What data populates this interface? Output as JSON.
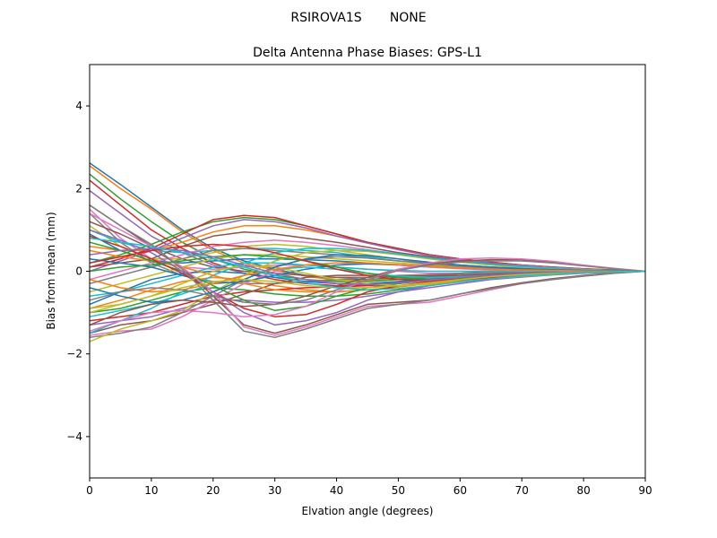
{
  "suptitle": {
    "station": "RSIROVA1S",
    "radome": "NONE"
  },
  "chart_data": {
    "type": "line",
    "title": "Delta Antenna Phase Biases: GPS-L1",
    "xlabel": "Elvation angle (degrees)",
    "ylabel": "Bias from mean (mm)",
    "xlim": [
      0,
      90
    ],
    "ylim": [
      -5,
      5
    ],
    "xticks": [
      0,
      10,
      20,
      30,
      40,
      50,
      60,
      70,
      80,
      90
    ],
    "yticks": [
      -4,
      -2,
      0,
      2,
      4
    ],
    "ytick_labels": [
      "−4",
      "−2",
      "0",
      "2",
      "4"
    ],
    "grid": false,
    "legend": "none",
    "x": [
      0,
      5,
      10,
      15,
      20,
      25,
      30,
      35,
      40,
      45,
      50,
      55,
      60,
      65,
      70,
      75,
      80,
      85,
      90
    ],
    "palette": [
      "#1f77b4",
      "#ff7f0e",
      "#2ca02c",
      "#d62728",
      "#9467bd",
      "#8c564b",
      "#e377c2",
      "#7f7f7f",
      "#bcbd22",
      "#17becf"
    ],
    "series": [
      {
        "values": [
          2.62,
          2.1,
          1.55,
          1.0,
          0.55,
          0.25,
          0.05,
          -0.1,
          -0.2,
          -0.2,
          -0.15,
          -0.1,
          -0.05,
          0.0,
          0.02,
          0.02,
          0.02,
          0.01,
          0.0
        ]
      },
      {
        "values": [
          2.55,
          2.0,
          1.5,
          0.95,
          0.5,
          0.2,
          0.02,
          -0.12,
          -0.22,
          -0.22,
          -0.18,
          -0.12,
          -0.06,
          -0.02,
          0.0,
          0.01,
          0.01,
          0.0,
          0.0
        ]
      },
      {
        "values": [
          2.35,
          1.75,
          1.2,
          0.7,
          0.3,
          0.05,
          -0.1,
          -0.2,
          -0.25,
          -0.25,
          -0.2,
          -0.15,
          -0.1,
          -0.05,
          -0.02,
          0.0,
          0.0,
          0.0,
          0.0
        ]
      },
      {
        "values": [
          2.2,
          1.6,
          1.0,
          0.55,
          0.2,
          -0.05,
          -0.2,
          -0.3,
          -0.35,
          -0.33,
          -0.28,
          -0.2,
          -0.12,
          -0.06,
          -0.02,
          0.0,
          0.0,
          0.0,
          0.0
        ]
      },
      {
        "values": [
          1.95,
          1.4,
          0.85,
          0.45,
          0.15,
          -0.05,
          -0.15,
          -0.25,
          -0.3,
          -0.3,
          -0.25,
          -0.18,
          -0.1,
          -0.05,
          -0.02,
          0.0,
          0.0,
          0.0,
          0.0
        ]
      },
      {
        "values": [
          1.6,
          1.1,
          0.6,
          0.3,
          0.1,
          0.0,
          -0.05,
          -0.1,
          -0.15,
          -0.15,
          -0.12,
          -0.1,
          -0.06,
          -0.03,
          -0.01,
          0.0,
          0.0,
          0.0,
          0.0
        ]
      },
      {
        "values": [
          1.5,
          0.8,
          0.3,
          0.1,
          0.05,
          0.1,
          0.15,
          0.15,
          0.1,
          0.05,
          0.0,
          -0.05,
          -0.05,
          -0.04,
          -0.02,
          -0.01,
          0.0,
          0.0,
          0.0
        ]
      },
      {
        "values": [
          1.4,
          0.7,
          0.2,
          -0.1,
          -0.25,
          -0.3,
          -0.3,
          -0.25,
          -0.2,
          -0.15,
          -0.1,
          -0.08,
          -0.05,
          -0.03,
          -0.02,
          -0.01,
          0.0,
          0.0,
          0.0
        ]
      },
      {
        "values": [
          1.1,
          0.6,
          0.3,
          0.3,
          0.45,
          0.6,
          0.65,
          0.6,
          0.5,
          0.4,
          0.3,
          0.2,
          0.15,
          0.1,
          0.08,
          0.05,
          0.03,
          0.01,
          0.0
        ]
      },
      {
        "values": [
          1.0,
          0.7,
          0.5,
          0.45,
          0.5,
          0.55,
          0.55,
          0.5,
          0.45,
          0.35,
          0.25,
          0.2,
          0.15,
          0.1,
          0.06,
          0.04,
          0.02,
          0.01,
          0.0
        ]
      },
      {
        "values": [
          0.9,
          0.5,
          0.25,
          0.2,
          0.25,
          0.3,
          0.3,
          0.28,
          0.25,
          0.2,
          0.15,
          0.1,
          0.08,
          0.05,
          0.03,
          0.02,
          0.01,
          0.0,
          0.0
        ]
      },
      {
        "values": [
          0.6,
          0.5,
          0.5,
          0.7,
          0.95,
          1.1,
          1.1,
          1.0,
          0.85,
          0.7,
          0.55,
          0.4,
          0.3,
          0.22,
          0.15,
          0.1,
          0.06,
          0.03,
          0.0
        ]
      },
      {
        "values": [
          0.2,
          0.4,
          0.65,
          0.95,
          1.2,
          1.3,
          1.25,
          1.1,
          0.9,
          0.7,
          0.55,
          0.4,
          0.3,
          0.22,
          0.15,
          0.1,
          0.06,
          0.03,
          0.0
        ]
      },
      {
        "values": [
          0.1,
          0.3,
          0.55,
          0.9,
          1.25,
          1.35,
          1.3,
          1.1,
          0.9,
          0.7,
          0.55,
          0.4,
          0.3,
          0.22,
          0.15,
          0.1,
          0.06,
          0.03,
          0.0
        ]
      },
      {
        "values": [
          0.0,
          0.25,
          0.5,
          0.8,
          1.1,
          1.25,
          1.2,
          1.05,
          0.85,
          0.68,
          0.52,
          0.38,
          0.28,
          0.2,
          0.14,
          0.09,
          0.05,
          0.02,
          0.0
        ]
      },
      {
        "values": [
          0.1,
          0.2,
          0.3,
          0.6,
          0.85,
          0.95,
          0.9,
          0.8,
          0.7,
          0.58,
          0.45,
          0.35,
          0.25,
          0.18,
          0.12,
          0.08,
          0.05,
          0.02,
          0.0
        ]
      },
      {
        "values": [
          -0.2,
          0.0,
          0.2,
          0.4,
          0.6,
          0.7,
          0.75,
          0.7,
          0.62,
          0.52,
          0.42,
          0.32,
          0.24,
          0.17,
          0.12,
          0.08,
          0.05,
          0.02,
          0.0
        ]
      },
      {
        "values": [
          -0.3,
          -0.1,
          0.1,
          0.3,
          0.5,
          0.55,
          0.5,
          0.45,
          0.4,
          0.32,
          0.25,
          0.2,
          0.15,
          0.1,
          0.07,
          0.05,
          0.03,
          0.01,
          0.0
        ]
      },
      {
        "values": [
          -0.5,
          -0.3,
          -0.1,
          0.1,
          0.3,
          0.4,
          0.4,
          0.35,
          0.3,
          0.25,
          0.2,
          0.15,
          0.1,
          0.07,
          0.05,
          0.03,
          0.02,
          0.01,
          0.0
        ]
      },
      {
        "values": [
          -0.6,
          -0.5,
          -0.3,
          -0.1,
          0.1,
          0.2,
          0.2,
          0.15,
          0.1,
          0.05,
          0.02,
          0.0,
          0.0,
          0.0,
          0.0,
          0.0,
          0.0,
          0.0,
          0.0
        ]
      },
      {
        "values": [
          -0.8,
          -0.5,
          -0.2,
          -0.05,
          0.0,
          -0.05,
          -0.15,
          -0.25,
          -0.3,
          -0.3,
          -0.25,
          -0.2,
          -0.15,
          -0.1,
          -0.06,
          -0.04,
          -0.02,
          -0.01,
          0.0
        ]
      },
      {
        "values": [
          -0.9,
          -0.7,
          -0.45,
          -0.25,
          -0.15,
          -0.2,
          -0.35,
          -0.45,
          -0.5,
          -0.45,
          -0.38,
          -0.3,
          -0.22,
          -0.15,
          -0.1,
          -0.06,
          -0.03,
          -0.01,
          0.0
        ]
      },
      {
        "values": [
          -1.0,
          -0.9,
          -0.7,
          -0.5,
          -0.4,
          -0.45,
          -0.55,
          -0.6,
          -0.6,
          -0.55,
          -0.45,
          -0.35,
          -0.25,
          -0.18,
          -0.12,
          -0.08,
          -0.04,
          -0.02,
          0.0
        ]
      },
      {
        "values": [
          -1.2,
          -1.1,
          -1.0,
          -0.8,
          -0.6,
          -0.5,
          -0.45,
          -0.4,
          -0.38,
          -0.35,
          -0.3,
          -0.22,
          -0.15,
          -0.1,
          -0.06,
          -0.04,
          -0.02,
          -0.01,
          0.0
        ]
      },
      {
        "values": [
          -1.3,
          -1.2,
          -1.1,
          -0.9,
          -0.7,
          -0.7,
          -0.75,
          -0.75,
          -0.7,
          -0.6,
          -0.5,
          -0.4,
          -0.3,
          -0.2,
          -0.14,
          -0.09,
          -0.05,
          -0.02,
          0.0
        ]
      },
      {
        "values": [
          -1.5,
          -1.3,
          -1.2,
          -1.0,
          -0.8,
          -0.55,
          -0.3,
          -0.15,
          -0.1,
          -0.1,
          -0.12,
          -0.12,
          -0.1,
          -0.07,
          -0.05,
          -0.03,
          -0.02,
          -0.01,
          0.0
        ]
      },
      {
        "values": [
          -1.55,
          -1.45,
          -1.4,
          -1.1,
          -0.7,
          -0.3,
          0.0,
          0.15,
          0.2,
          0.18,
          0.15,
          0.1,
          0.06,
          0.03,
          0.02,
          0.01,
          0.0,
          0.0,
          0.0
        ]
      },
      {
        "values": [
          -1.6,
          -1.5,
          -1.35,
          -1.0,
          -0.6,
          -0.2,
          0.1,
          0.3,
          0.35,
          0.32,
          0.25,
          0.18,
          0.12,
          0.08,
          0.05,
          0.03,
          0.02,
          0.01,
          0.0
        ]
      },
      {
        "values": [
          -1.7,
          -1.4,
          -1.2,
          -0.95,
          -0.5,
          -0.1,
          0.25,
          0.45,
          0.5,
          0.48,
          0.4,
          0.3,
          0.22,
          0.15,
          0.1,
          0.06,
          0.03,
          0.01,
          0.0
        ]
      },
      {
        "values": [
          -1.5,
          -1.2,
          -0.9,
          -0.5,
          -0.1,
          0.2,
          0.45,
          0.55,
          0.55,
          0.5,
          0.42,
          0.32,
          0.24,
          0.17,
          0.11,
          0.07,
          0.04,
          0.02,
          0.0
        ]
      },
      {
        "values": [
          0.3,
          0.2,
          0.1,
          -0.1,
          -0.3,
          -0.25,
          -0.1,
          0.05,
          0.15,
          0.18,
          0.16,
          0.12,
          0.08,
          0.05,
          0.03,
          0.02,
          0.01,
          0.0,
          0.0
        ]
      },
      {
        "values": [
          0.5,
          0.35,
          0.25,
          0.1,
          -0.1,
          -0.3,
          -0.45,
          -0.5,
          -0.5,
          -0.45,
          -0.38,
          -0.3,
          -0.22,
          -0.15,
          -0.1,
          -0.06,
          -0.03,
          -0.01,
          0.0
        ]
      },
      {
        "values": [
          0.7,
          0.5,
          0.25,
          0.0,
          -0.35,
          -0.7,
          -0.95,
          -0.85,
          -0.6,
          -0.4,
          -0.3,
          -0.22,
          -0.15,
          -0.1,
          -0.06,
          -0.04,
          -0.02,
          -0.01,
          0.0
        ]
      },
      {
        "values": [
          0.85,
          0.6,
          0.3,
          -0.05,
          -0.5,
          -0.9,
          -1.1,
          -1.05,
          -0.8,
          -0.5,
          -0.35,
          -0.25,
          -0.18,
          -0.12,
          -0.08,
          -0.05,
          -0.03,
          -0.01,
          0.0
        ]
      },
      {
        "values": [
          1.0,
          0.75,
          0.45,
          0.0,
          -0.5,
          -1.0,
          -1.3,
          -1.2,
          -1.0,
          -0.7,
          -0.5,
          -0.35,
          -0.24,
          -0.16,
          -0.1,
          -0.06,
          -0.03,
          -0.01,
          0.0
        ]
      },
      {
        "values": [
          1.2,
          0.9,
          0.55,
          0.1,
          -0.6,
          -1.3,
          -1.5,
          -1.3,
          -1.05,
          -0.8,
          -0.75,
          -0.7,
          -0.55,
          -0.4,
          -0.28,
          -0.18,
          -0.1,
          -0.04,
          0.0
        ]
      },
      {
        "values": [
          1.4,
          1.0,
          0.6,
          0.1,
          -0.5,
          -1.35,
          -1.55,
          -1.35,
          -1.1,
          -0.85,
          -0.8,
          -0.75,
          -0.6,
          -0.45,
          -0.3,
          -0.2,
          -0.12,
          -0.05,
          0.0
        ]
      },
      {
        "values": [
          1.6,
          1.1,
          0.65,
          0.05,
          -0.7,
          -1.45,
          -1.6,
          -1.4,
          -1.15,
          -0.9,
          -0.8,
          -0.7,
          -0.55,
          -0.42,
          -0.3,
          -0.2,
          -0.12,
          -0.05,
          0.0
        ]
      },
      {
        "values": [
          -0.9,
          -0.8,
          -0.6,
          -0.3,
          0.0,
          0.15,
          0.1,
          -0.05,
          -0.2,
          -0.3,
          -0.35,
          -0.32,
          -0.25,
          -0.18,
          -0.12,
          -0.08,
          -0.04,
          -0.02,
          0.0
        ]
      },
      {
        "values": [
          -1.1,
          -0.95,
          -0.8,
          -0.55,
          -0.3,
          -0.1,
          0.05,
          0.1,
          0.05,
          -0.05,
          -0.12,
          -0.15,
          -0.13,
          -0.1,
          -0.07,
          -0.04,
          -0.02,
          -0.01,
          0.0
        ]
      },
      {
        "values": [
          -0.4,
          -0.6,
          -0.75,
          -0.7,
          -0.5,
          -0.2,
          0.1,
          0.3,
          0.4,
          0.38,
          0.3,
          0.22,
          0.15,
          0.1,
          0.06,
          0.04,
          0.02,
          0.01,
          0.0
        ]
      },
      {
        "values": [
          -0.2,
          -0.4,
          -0.5,
          -0.45,
          -0.3,
          -0.1,
          0.05,
          0.15,
          0.2,
          0.2,
          0.16,
          0.12,
          0.08,
          0.05,
          0.03,
          0.02,
          0.01,
          0.0,
          0.0
        ]
      },
      {
        "values": [
          0.0,
          0.1,
          0.15,
          0.25,
          0.35,
          0.4,
          0.35,
          0.25,
          0.1,
          -0.05,
          -0.15,
          -0.2,
          -0.18,
          -0.14,
          -0.1,
          -0.06,
          -0.03,
          -0.01,
          0.0
        ]
      },
      {
        "values": [
          0.2,
          0.35,
          0.5,
          0.6,
          0.65,
          0.6,
          0.45,
          0.25,
          0.05,
          -0.1,
          -0.2,
          -0.22,
          -0.2,
          -0.15,
          -0.1,
          -0.06,
          -0.03,
          -0.01,
          0.0
        ]
      },
      {
        "values": [
          0.4,
          0.5,
          0.55,
          0.5,
          0.35,
          0.15,
          -0.05,
          -0.2,
          -0.3,
          -0.32,
          -0.28,
          -0.22,
          -0.15,
          -0.1,
          -0.06,
          -0.04,
          -0.02,
          -0.01,
          0.0
        ]
      },
      {
        "values": [
          -1.3,
          -1.0,
          -0.8,
          -0.7,
          -0.75,
          -0.85,
          -0.8,
          -0.6,
          -0.35,
          -0.15,
          0.05,
          0.18,
          0.25,
          0.28,
          0.28,
          0.22,
          0.14,
          0.06,
          0.0
        ]
      },
      {
        "values": [
          -1.45,
          -1.2,
          -1.0,
          -0.95,
          -1.0,
          -1.1,
          -1.05,
          -0.85,
          -0.5,
          -0.2,
          0.05,
          0.2,
          0.3,
          0.32,
          0.3,
          0.24,
          0.15,
          0.07,
          0.0
        ]
      },
      {
        "values": [
          -0.7,
          -0.5,
          -0.4,
          -0.45,
          -0.6,
          -0.75,
          -0.8,
          -0.7,
          -0.45,
          -0.2,
          0.02,
          0.15,
          0.22,
          0.25,
          0.25,
          0.2,
          0.13,
          0.06,
          0.0
        ]
      },
      {
        "values": [
          -1.0,
          -0.8,
          -0.6,
          -0.4,
          -0.25,
          -0.2,
          -0.25,
          -0.35,
          -0.4,
          -0.4,
          -0.35,
          -0.28,
          -0.2,
          -0.13,
          -0.08,
          -0.05,
          -0.03,
          -0.01,
          0.0
        ]
      },
      {
        "values": [
          0.8,
          0.7,
          0.6,
          0.45,
          0.3,
          0.1,
          -0.1,
          -0.28,
          -0.4,
          -0.45,
          -0.42,
          -0.35,
          -0.26,
          -0.18,
          -0.11,
          -0.07,
          -0.04,
          -0.02,
          0.0
        ]
      }
    ]
  }
}
